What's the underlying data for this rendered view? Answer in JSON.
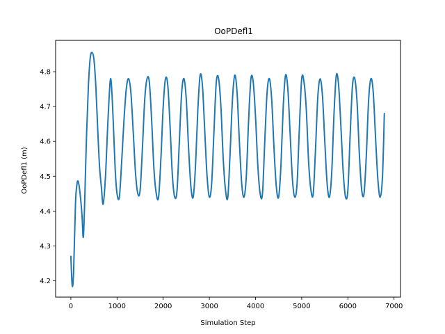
{
  "chart_data": {
    "type": "line",
    "title": "OoPDefl1",
    "xlabel": "Simulation Step",
    "ylabel": "OoPDefl1 (m)",
    "xlim": [
      -330,
      7140
    ],
    "ylim": [
      4.153,
      4.89
    ],
    "xticks": [
      0,
      1000,
      2000,
      3000,
      4000,
      5000,
      6000,
      7000
    ],
    "yticks": [
      4.2,
      4.3,
      4.4,
      4.5,
      4.6,
      4.7,
      4.8
    ],
    "grid": false,
    "line_color": "#1f77b4",
    "series": [
      {
        "x": [
          0,
          30,
          60,
          100,
          130,
          160,
          200,
          240,
          270,
          300,
          340,
          380,
          420,
          460,
          500,
          540,
          580,
          620,
          660,
          700,
          750,
          800,
          850,
          880,
          920,
          960,
          1000,
          1050,
          1100,
          1150,
          1200,
          1250,
          1300,
          1350,
          1400,
          1450,
          1500,
          1550,
          1600,
          1650,
          1700,
          1750,
          1800,
          1850,
          1900,
          1950,
          2000,
          2050,
          2100,
          2150,
          2200,
          2250,
          2300,
          2350,
          2400,
          2450,
          2500,
          2550,
          2600,
          2650,
          2700,
          2750,
          2800,
          2850,
          2900,
          2950,
          3000,
          3050,
          3100,
          3150,
          3200,
          3250,
          3300,
          3350,
          3400,
          3450,
          3500,
          3550,
          3600,
          3650,
          3700,
          3750,
          3800,
          3850,
          3900,
          3950,
          4000,
          4050,
          4100,
          4150,
          4200,
          4250,
          4300,
          4350,
          4400,
          4450,
          4500,
          4550,
          4600,
          4650,
          4700,
          4750,
          4800,
          4850,
          4900,
          4950,
          5000,
          5050,
          5100,
          5150,
          5200,
          5250,
          5300,
          5350,
          5400,
          5450,
          5500,
          5550,
          5600,
          5650,
          5700,
          5750,
          5800,
          5850,
          5900,
          5950,
          6000,
          6050,
          6100,
          6150,
          6200,
          6250,
          6300,
          6350,
          6400,
          6450,
          6500,
          6550,
          6600,
          6650,
          6700,
          6750,
          6790
        ],
        "y": [
          4.27,
          4.185,
          4.23,
          4.42,
          4.475,
          4.485,
          4.45,
          4.39,
          4.325,
          4.43,
          4.62,
          4.76,
          4.84,
          4.855,
          4.835,
          4.76,
          4.64,
          4.53,
          4.47,
          4.42,
          4.5,
          4.65,
          4.77,
          4.76,
          4.65,
          4.52,
          4.45,
          4.44,
          4.54,
          4.66,
          4.75,
          4.78,
          4.74,
          4.63,
          4.51,
          4.45,
          4.46,
          4.58,
          4.72,
          4.78,
          4.77,
          4.66,
          4.52,
          4.45,
          4.44,
          4.55,
          4.7,
          4.78,
          4.76,
          4.64,
          4.5,
          4.44,
          4.46,
          4.6,
          4.74,
          4.78,
          4.72,
          4.58,
          4.47,
          4.44,
          4.53,
          4.69,
          4.79,
          4.76,
          4.63,
          4.5,
          4.44,
          4.48,
          4.63,
          4.77,
          4.78,
          4.7,
          4.55,
          4.46,
          4.44,
          4.57,
          4.72,
          4.79,
          4.74,
          4.6,
          4.48,
          4.44,
          4.5,
          4.66,
          4.78,
          4.77,
          4.67,
          4.53,
          4.45,
          4.45,
          4.6,
          4.74,
          4.78,
          4.72,
          4.58,
          4.47,
          4.44,
          4.53,
          4.7,
          4.79,
          4.75,
          4.62,
          4.49,
          4.44,
          4.48,
          4.64,
          4.78,
          4.77,
          4.69,
          4.54,
          4.46,
          4.45,
          4.58,
          4.73,
          4.78,
          4.73,
          4.6,
          4.48,
          4.44,
          4.51,
          4.68,
          4.79,
          4.76,
          4.64,
          4.51,
          4.44,
          4.46,
          4.62,
          4.76,
          4.78,
          4.71,
          4.56,
          4.46,
          4.45,
          4.56,
          4.72,
          4.78,
          4.74,
          4.61,
          4.49,
          4.44,
          4.5,
          4.68
        ]
      }
    ]
  }
}
